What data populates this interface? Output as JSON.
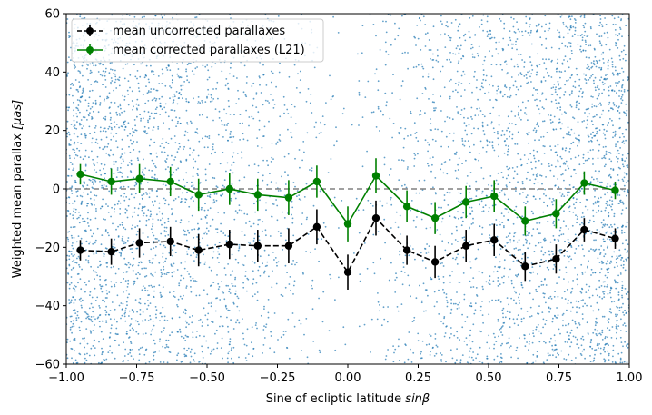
{
  "chart_data": {
    "type": "scatter",
    "xlabel_text": "Sine of ecliptic latitude ",
    "xlabel_math": "sinβ",
    "ylabel_text": "Weighted mean parallax ",
    "ylabel_math": "[μas]",
    "xlim": [
      -1.0,
      1.0
    ],
    "ylim": [
      -60,
      60
    ],
    "x_ticks": [
      -1.0,
      -0.75,
      -0.5,
      -0.25,
      0.0,
      0.25,
      0.5,
      0.75,
      1.0
    ],
    "x_tick_labels": [
      "−1.00",
      "−0.75",
      "−0.50",
      "−0.25",
      "0.00",
      "0.25",
      "0.50",
      "0.75",
      "1.00"
    ],
    "y_ticks": [
      -60,
      -40,
      -20,
      0,
      20,
      40,
      60
    ],
    "y_tick_labels": [
      "−60",
      "−40",
      "−20",
      "0",
      "20",
      "40",
      "60"
    ],
    "grid": false,
    "legend_placement": "top-left",
    "reference_line": {
      "y": 0,
      "x_range": [
        -1.0,
        1.0
      ],
      "color": "#808080",
      "style": "dashed"
    },
    "background_scatter": {
      "color": "#1f77b4",
      "description_x_range": [
        -1.0,
        1.0
      ],
      "y_range": [
        -60,
        60
      ]
    },
    "series": [
      {
        "name": "mean uncorrected parallaxes",
        "color": "#000000",
        "line_style": "dashed",
        "x": [
          -0.95,
          -0.84,
          -0.74,
          -0.63,
          -0.53,
          -0.42,
          -0.32,
          -0.21,
          -0.11,
          0.0,
          0.1,
          0.21,
          0.31,
          0.42,
          0.52,
          0.63,
          0.74,
          0.84,
          0.95
        ],
        "y": [
          -21,
          -21.5,
          -18.5,
          -18,
          -21,
          -19,
          -19.5,
          -19.5,
          -13,
          -28.5,
          -10,
          -21,
          -25,
          -19.5,
          -17.5,
          -26.5,
          -24,
          -14,
          -17
        ],
        "yerr": [
          3.5,
          4.5,
          5,
          5,
          5.5,
          5,
          5.5,
          6,
          6,
          6,
          6,
          5,
          5.5,
          5.5,
          5.5,
          5,
          5,
          4,
          3.5
        ]
      },
      {
        "name": "mean corrected parallaxes (L21)",
        "color": "#008000",
        "line_style": "solid",
        "x": [
          -0.95,
          -0.84,
          -0.74,
          -0.63,
          -0.53,
          -0.42,
          -0.32,
          -0.21,
          -0.11,
          0.0,
          0.1,
          0.21,
          0.31,
          0.42,
          0.52,
          0.63,
          0.74,
          0.84,
          0.95
        ],
        "y": [
          5,
          2.5,
          3.5,
          2.5,
          -2,
          0,
          -2,
          -3,
          2.5,
          -12,
          4.5,
          -6,
          -10,
          -4.5,
          -2.5,
          -11,
          -8.5,
          2,
          -0.5
        ],
        "yerr": [
          3.5,
          4.5,
          5,
          5,
          5.5,
          5.5,
          5.5,
          6,
          5.5,
          6,
          6,
          5.5,
          5.5,
          5.5,
          5.5,
          5,
          5,
          4,
          3
        ]
      }
    ]
  }
}
